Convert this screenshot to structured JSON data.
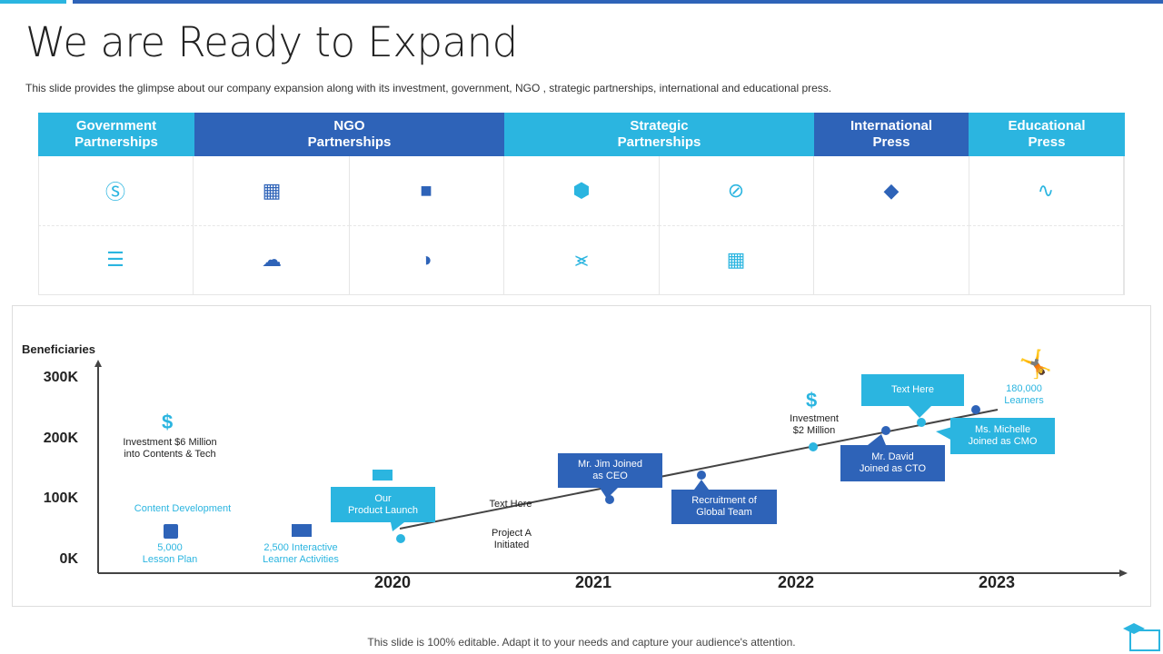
{
  "title": "We are Ready to Expand",
  "subtitle": "This slide provides the glimpse about our company expansion along with its investment, government, NGO ,  strategic partnerships, international and educational press.",
  "table": {
    "headers": [
      "Government\nPartnerships",
      "NGO\nPartnerships",
      "Strategic\nPartnerships",
      "International\nPress",
      "Educational\nPress"
    ]
  },
  "chart_data": {
    "type": "line",
    "ylabel": "Beneficiaries",
    "yticks": [
      "300K",
      "200K",
      "100K",
      "0K"
    ],
    "xticks": [
      "2020",
      "2021",
      "2022",
      "2023"
    ],
    "ylim": [
      0,
      300000
    ],
    "notes": {
      "investment1": "Investment  $6 Million\ninto Contents & Tech",
      "content_dev": "Content Development",
      "lesson": "5,000\nLesson Plan",
      "activities": "2,500 Interactive\nLearner Activities",
      "product_launch": "Our\nProduct Launch",
      "text_here1": "Text Here",
      "project_a": "Project  A\nInitiated",
      "jim": "Mr. Jim Joined\nas CEO",
      "recruitment": "Recruitment  of\nGlobal Team",
      "investment2": "Investment\n$2 Million",
      "david": "Mr. David\nJoined  as CTO",
      "text_here2": "Text Here",
      "michelle": "Ms. Michelle\nJoined  as CMO",
      "learners": "180,000\nLearners"
    }
  },
  "colors": {
    "cyan": "#2BB5E0",
    "blue": "#2E63B8"
  },
  "footer": "This slide is 100% editable. Adapt it to your needs and capture your audience's attention."
}
